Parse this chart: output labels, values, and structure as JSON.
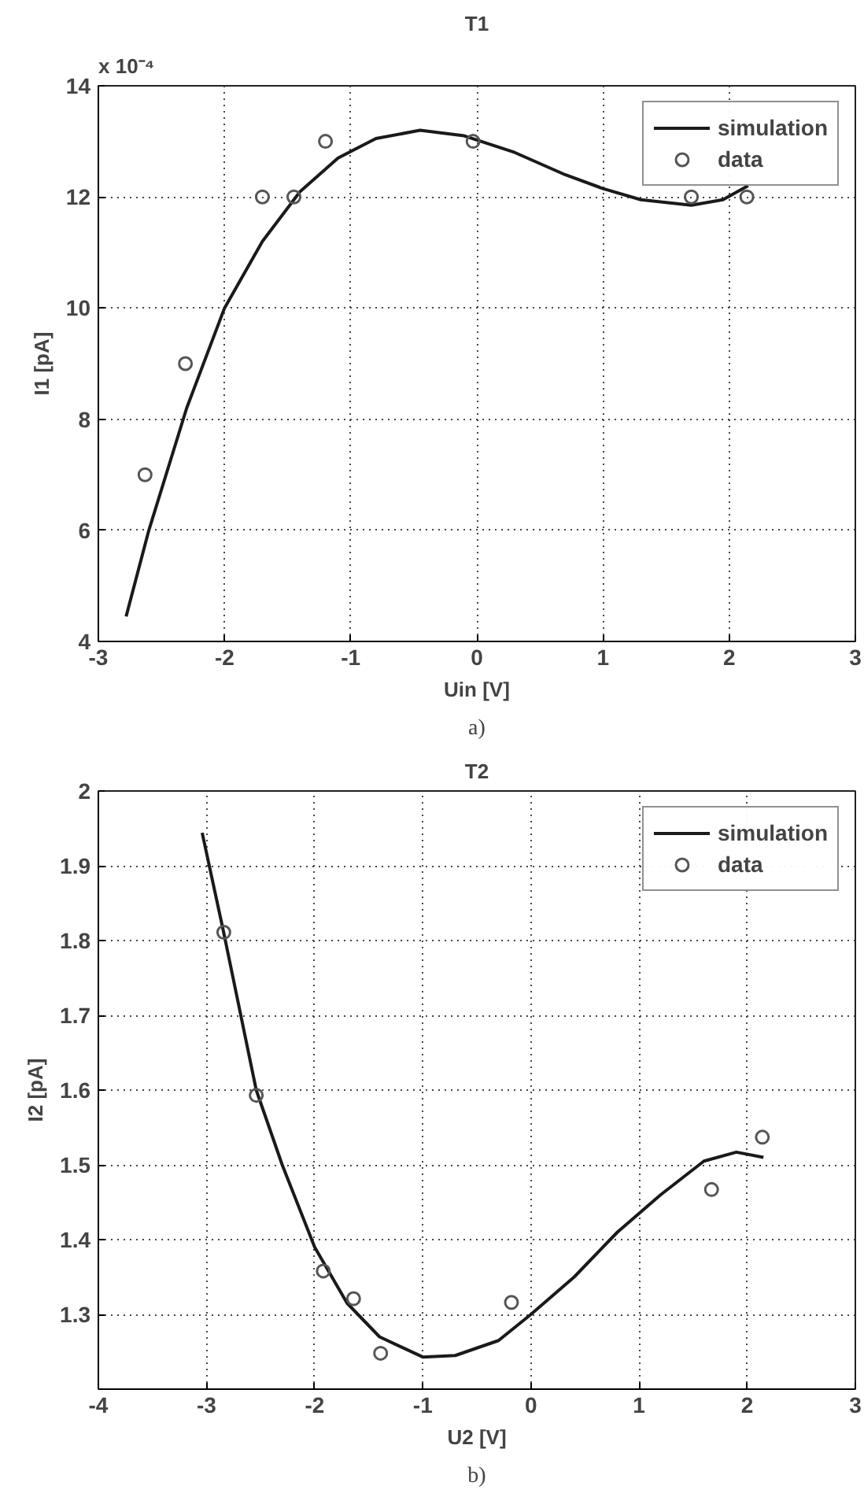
{
  "chart_data": [
    {
      "type": "line",
      "title": "T1",
      "xlabel": "Uin [V]",
      "ylabel": "I1 [pA]",
      "annotations": [
        "x 10⁻⁴",
        "a)"
      ],
      "xlim": [
        -3,
        3
      ],
      "ylim": [
        4,
        14
      ],
      "xticks": [
        -3,
        -2,
        -1,
        0,
        1,
        2,
        3
      ],
      "yticks": [
        4,
        6,
        8,
        10,
        12,
        14
      ],
      "grid": true,
      "legend": "top right",
      "series": [
        {
          "name": "simulation",
          "color": "#1a1a1a",
          "marker": "none",
          "x": [
            -2.78,
            -2.6,
            -2.3,
            -2.0,
            -1.7,
            -1.4,
            -1.1,
            -0.8,
            -0.45,
            -0.1,
            0.3,
            0.7,
            1.0,
            1.3,
            1.7,
            1.95,
            2.15
          ],
          "values": [
            4.45,
            6,
            8.2,
            10,
            11.2,
            12.1,
            12.7,
            13.05,
            13.2,
            13.1,
            12.8,
            12.4,
            12.15,
            11.95,
            11.85,
            11.95,
            12.2
          ]
        },
        {
          "name": "data",
          "type": "scatter",
          "color": "#555555",
          "marker": "circle",
          "x": [
            -2.63,
            -2.31,
            -1.7,
            -1.45,
            -1.2,
            -0.03,
            1.7,
            2.14
          ],
          "values": [
            7,
            9,
            12,
            12,
            13,
            13,
            12,
            12
          ]
        }
      ]
    },
    {
      "type": "line",
      "title": "T2",
      "xlabel": "U2 [V]",
      "ylabel": "I2 [pA]",
      "annotations": [
        "b)"
      ],
      "xlim": [
        -4,
        3
      ],
      "ylim": [
        1.2,
        2
      ],
      "xticks": [
        -4,
        -3,
        -2,
        -1,
        0,
        1,
        2,
        3
      ],
      "yticks": [
        1.3,
        1.4,
        1.5,
        1.6,
        1.7,
        1.8,
        1.9,
        2
      ],
      "grid": true,
      "legend": "top right",
      "series": [
        {
          "name": "simulation",
          "color": "#1a1a1a",
          "marker": "none",
          "x": [
            -3.04,
            -2.84,
            -2.54,
            -2.3,
            -2.0,
            -1.7,
            -1.4,
            -1.0,
            -0.7,
            -0.3,
            0,
            0.4,
            0.8,
            1.2,
            1.6,
            1.9,
            2.15
          ],
          "values": [
            1.944,
            1.81,
            1.6,
            1.5,
            1.39,
            1.315,
            1.27,
            1.243,
            1.245,
            1.265,
            1.3,
            1.35,
            1.41,
            1.46,
            1.505,
            1.517,
            1.51
          ]
        },
        {
          "name": "data",
          "type": "scatter",
          "color": "#555555",
          "marker": "circle",
          "x": [
            -2.84,
            -2.54,
            -1.92,
            -1.64,
            -1.39,
            -0.18,
            1.67,
            2.14
          ],
          "values": [
            1.811,
            1.593,
            1.358,
            1.321,
            1.248,
            1.316,
            1.467,
            1.537
          ]
        }
      ]
    }
  ]
}
